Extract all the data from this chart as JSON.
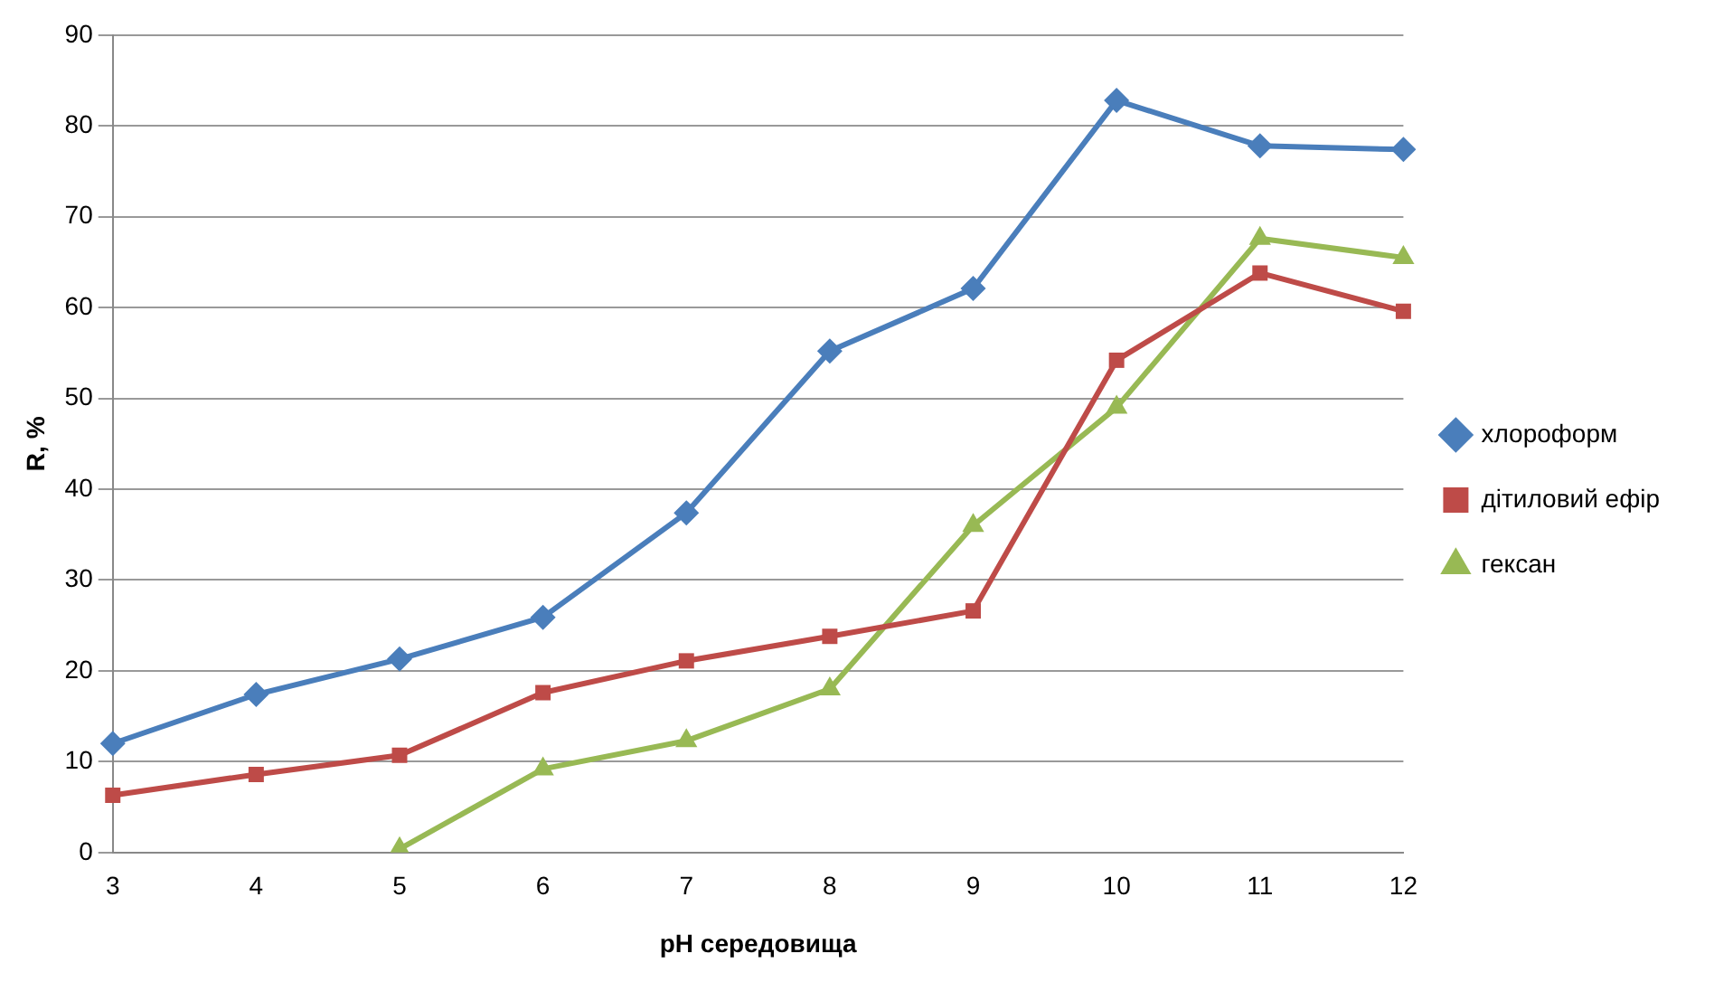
{
  "chart_data": {
    "type": "line",
    "xlabel": "pH середовища",
    "ylabel": "R, %",
    "categories": [
      "3",
      "4",
      "5",
      "6",
      "7",
      "8",
      "9",
      "10",
      "11",
      "12"
    ],
    "series": [
      {
        "name": "хлороформ",
        "color": "#4a7ebb",
        "marker": "diamond",
        "values": [
          12,
          17.4,
          21.3,
          25.9,
          37.4,
          55.2,
          62.1,
          82.8,
          77.8,
          77.4
        ]
      },
      {
        "name": "дітиловий ефір",
        "color": "#be4b48",
        "marker": "square",
        "values": [
          6.3,
          8.6,
          10.7,
          17.6,
          21.1,
          23.8,
          26.6,
          54.2,
          63.8,
          59.6
        ]
      },
      {
        "name": "гексан",
        "color": "#98b954",
        "marker": "triangle",
        "values": [
          null,
          null,
          0.4,
          9.2,
          12.3,
          18,
          36,
          49,
          67.6,
          65.5
        ]
      }
    ],
    "ylim": [
      0,
      90
    ],
    "yticks": [
      0,
      10,
      20,
      30,
      40,
      50,
      60,
      70,
      80,
      90
    ],
    "grid": "y",
    "legend": "right",
    "line_style": "solid"
  }
}
